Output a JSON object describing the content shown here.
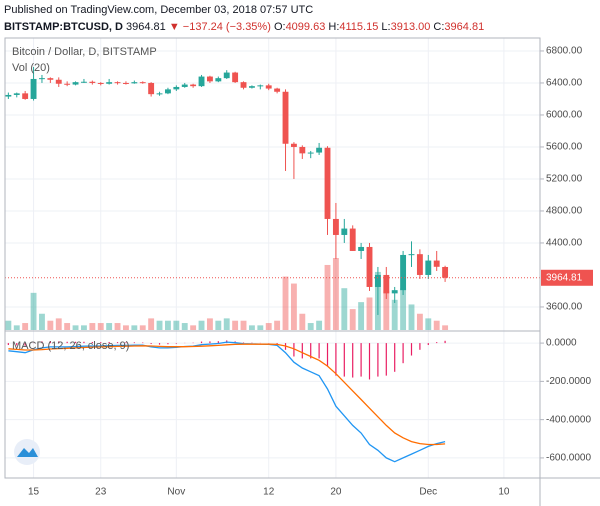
{
  "header": {
    "published": "Published on TradingView.com, December 03, 2018 07:57 UTC",
    "symbol": "BITSTAMP:BTCUSD, D",
    "last": "3964.81",
    "change": "▼ −137.24 (−3.35%)",
    "open_label": "O:",
    "open": "4099.63",
    "high_label": "H:",
    "high": "4115.15",
    "low_label": "L:",
    "low": "3913.00",
    "close_label": "C:",
    "close": "3964.81"
  },
  "chart_data": [
    {
      "type": "candlestick",
      "title": "Bitcoin / Dollar, D, BITSTAMP",
      "categories": [
        "Oct 12",
        "Oct 13",
        "Oct 14",
        "Oct 15",
        "Oct 16",
        "Oct 17",
        "Oct 18",
        "Oct 19",
        "Oct 20",
        "Oct 21",
        "Oct 22",
        "Oct 23",
        "Oct 24",
        "Oct 25",
        "Oct 26",
        "Oct 27",
        "Oct 28",
        "Oct 29",
        "Oct 30",
        "Oct 31",
        "Nov 1",
        "Nov 2",
        "Nov 3",
        "Nov 4",
        "Nov 5",
        "Nov 6",
        "Nov 7",
        "Nov 8",
        "Nov 9",
        "Nov 10",
        "Nov 11",
        "Nov 12",
        "Nov 13",
        "Nov 14",
        "Nov 15",
        "Nov 16",
        "Nov 17",
        "Nov 18",
        "Nov 19",
        "Nov 20",
        "Nov 21",
        "Nov 22",
        "Nov 23",
        "Nov 24",
        "Nov 25",
        "Nov 26",
        "Nov 27",
        "Nov 28",
        "Nov 29",
        "Nov 30",
        "Dec 1",
        "Dec 2",
        "Dec 3"
      ],
      "open": [
        6230,
        6250,
        6270,
        6200,
        6450,
        6460,
        6440,
        6390,
        6380,
        6410,
        6415,
        6400,
        6390,
        6410,
        6400,
        6395,
        6410,
        6400,
        6260,
        6270,
        6320,
        6350,
        6380,
        6360,
        6480,
        6420,
        6460,
        6530,
        6410,
        6340,
        6360,
        6370,
        6330,
        6290,
        5640,
        5600,
        5520,
        5530,
        5590,
        4700,
        4500,
        4580,
        4300,
        4350,
        3850,
        4000,
        3770,
        3810,
        4250,
        4260,
        4000,
        4180,
        4099.63
      ],
      "high": [
        6280,
        6280,
        6300,
        6600,
        6500,
        6470,
        6470,
        6420,
        6420,
        6450,
        6430,
        6410,
        6450,
        6420,
        6420,
        6430,
        6420,
        6410,
        6290,
        6340,
        6370,
        6400,
        6390,
        6500,
        6490,
        6480,
        6560,
        6540,
        6420,
        6370,
        6380,
        6390,
        6340,
        6320,
        5660,
        5620,
        5550,
        5650,
        5610,
        4900,
        4700,
        4620,
        4400,
        4400,
        4100,
        4100,
        3850,
        4300,
        4420,
        4320,
        4250,
        4300,
        4115.15
      ],
      "low": [
        6200,
        6220,
        6190,
        6180,
        6400,
        6400,
        6350,
        6360,
        6370,
        6400,
        6380,
        6370,
        6380,
        6380,
        6380,
        6390,
        6390,
        6230,
        6240,
        6260,
        6300,
        6340,
        6340,
        6350,
        6400,
        6410,
        6450,
        6400,
        6320,
        6330,
        6320,
        6310,
        6270,
        5300,
        5200,
        5450,
        5460,
        5500,
        4500,
        4200,
        4400,
        4300,
        4200,
        3800,
        3500,
        3700,
        3650,
        3750,
        4100,
        3950,
        3950,
        4050,
        3913.0
      ],
      "close": [
        6250,
        6270,
        6200,
        6450,
        6460,
        6440,
        6390,
        6380,
        6410,
        6415,
        6400,
        6390,
        6410,
        6400,
        6395,
        6410,
        6400,
        6260,
        6270,
        6320,
        6350,
        6380,
        6360,
        6480,
        6420,
        6460,
        6530,
        6410,
        6340,
        6360,
        6370,
        6330,
        6290,
        5640,
        5600,
        5520,
        5530,
        5590,
        4700,
        4500,
        4580,
        4300,
        4350,
        3850,
        4000,
        3770,
        3810,
        4250,
        4260,
        4000,
        4180,
        4102.05,
        3964.81
      ],
      "volume": {
        "name": "Vol (20)",
        "values": [
          4,
          2,
          3,
          16,
          7,
          4,
          5,
          3,
          2,
          2,
          3,
          3,
          3,
          3,
          2,
          2,
          2,
          5,
          4,
          4,
          4,
          3,
          2,
          4,
          5,
          4,
          5,
          4,
          4,
          2,
          2,
          3,
          4,
          23,
          20,
          7,
          3,
          4,
          28,
          31,
          18,
          9,
          12,
          14,
          25,
          17,
          13,
          18,
          11,
          7,
          5,
          4,
          2
        ]
      },
      "up_color": "#26a69a",
      "down_color": "#ef5350",
      "xlim": [
        -0.4,
        63.3
      ],
      "xticks": [
        {
          "value": 3,
          "label": "15"
        },
        {
          "value": 11,
          "label": "23"
        },
        {
          "value": 20,
          "label": "Nov"
        },
        {
          "value": 31,
          "label": "12"
        },
        {
          "value": 39,
          "label": "20"
        },
        {
          "value": 50,
          "label": "Dec"
        },
        {
          "value": 59,
          "label": "10"
        }
      ],
      "ylim": [
        3312,
        6962
      ],
      "yticks": [
        {
          "value": 3600,
          "label": "3600.00"
        },
        {
          "value": 4400,
          "label": "4400.00"
        },
        {
          "value": 4800,
          "label": "4800.00"
        },
        {
          "value": 5200,
          "label": "5200.00"
        },
        {
          "value": 5600,
          "label": "5600.00"
        },
        {
          "value": 6000,
          "label": "6000.00"
        },
        {
          "value": 6400,
          "label": "6400.00"
        },
        {
          "value": 6800,
          "label": "6800.00"
        }
      ],
      "last_price": {
        "value": 3964.81,
        "label": "3964.81"
      },
      "grid": true
    },
    {
      "type": "line",
      "title": "MACD (12, 26, close, 9)",
      "series": [
        {
          "color": "#2196f3",
          "values": [
            -40,
            -45,
            -50,
            -35,
            -25,
            -20,
            -20,
            -20,
            -18,
            -16,
            -15,
            -15,
            -13,
            -12,
            -12,
            -11,
            -11,
            -20,
            -25,
            -25,
            -22,
            -18,
            -16,
            -8,
            -5,
            -2,
            5,
            2,
            -3,
            -4,
            -5,
            -7,
            -12,
            -50,
            -100,
            -130,
            -150,
            -170,
            -240,
            -330,
            -380,
            -430,
            -470,
            -530,
            -560,
            -600,
            -620,
            -600,
            -580,
            -560,
            -540,
            -525,
            -515
          ]
        },
        {
          "color": "#ff6d00",
          "values": [
            -30,
            -33,
            -36,
            -36,
            -34,
            -31,
            -29,
            -27,
            -25,
            -23,
            -21,
            -20,
            -19,
            -17,
            -16,
            -15,
            -14,
            -15,
            -17,
            -19,
            -19,
            -19,
            -18,
            -16,
            -14,
            -12,
            -9,
            -7,
            -6,
            -6,
            -6,
            -6,
            -7,
            -15,
            -30,
            -50,
            -70,
            -90,
            -120,
            -160,
            -205,
            -250,
            -295,
            -340,
            -385,
            -430,
            -470,
            -495,
            -515,
            -525,
            -530,
            -530,
            -527
          ]
        }
      ],
      "histogram": {
        "color": "#e91e63",
        "values": [
          -10,
          -12,
          -14,
          1,
          9,
          11,
          9,
          7,
          7,
          7,
          6,
          5,
          6,
          5,
          4,
          4,
          3,
          -5,
          -8,
          -6,
          -3,
          1,
          2,
          8,
          9,
          10,
          14,
          9,
          3,
          2,
          1,
          -1,
          -5,
          -35,
          -70,
          -80,
          -80,
          -80,
          -120,
          -170,
          -175,
          -180,
          -175,
          -190,
          -175,
          -170,
          -150,
          -105,
          -65,
          -35,
          -10,
          5,
          12
        ]
      },
      "ylim": [
        -705,
        58
      ],
      "yticks": [
        {
          "value": 0,
          "label": "0.0000"
        },
        {
          "value": -200,
          "label": "-200.0000"
        },
        {
          "value": -400,
          "label": "-400.0000"
        },
        {
          "value": -600,
          "label": "-600.0000"
        }
      ],
      "grid": true
    }
  ]
}
